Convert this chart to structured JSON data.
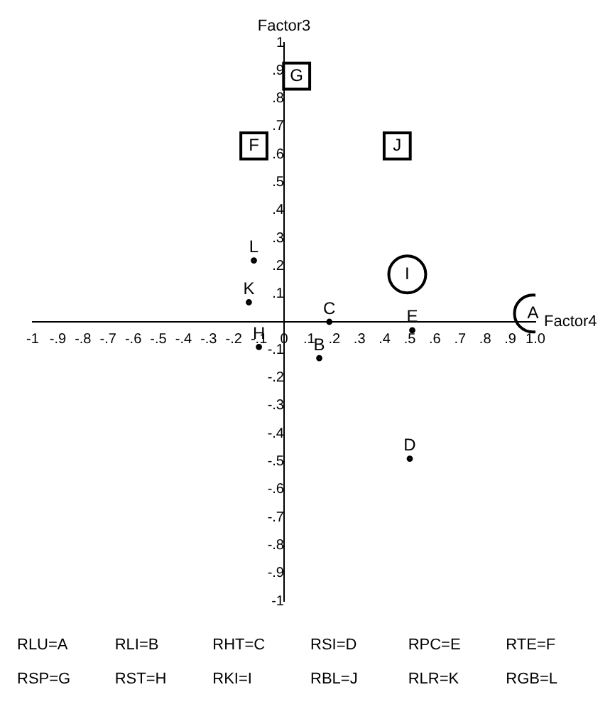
{
  "chart_data": {
    "type": "scatter",
    "xlabel": "Factor4",
    "ylabel": "Factor3",
    "xlim": [
      -1,
      1
    ],
    "ylim": [
      -1,
      1
    ],
    "grid": false,
    "legend": false,
    "xticks": [
      -1,
      {
        "value": -0.9,
        "label": "-.9"
      },
      {
        "value": -0.8,
        "label": "-.8"
      },
      {
        "value": -0.7,
        "label": "-.7"
      },
      {
        "value": -0.6,
        "label": "-.6"
      },
      {
        "value": -0.5,
        "label": "-.5"
      },
      {
        "value": -0.4,
        "label": "-.4"
      },
      {
        "value": -0.3,
        "label": "-.3"
      },
      {
        "value": -0.2,
        "label": "-.2"
      },
      {
        "value": -0.1,
        "label": "-.1"
      },
      0,
      {
        "value": 0.1,
        "label": ".1"
      },
      {
        "value": 0.2,
        "label": ".2"
      },
      {
        "value": 0.3,
        "label": ".3"
      },
      {
        "value": 0.4,
        "label": ".4"
      },
      {
        "value": 0.5,
        "label": ".5"
      },
      {
        "value": 0.6,
        "label": ".6"
      },
      {
        "value": 0.7,
        "label": ".7"
      },
      {
        "value": 0.8,
        "label": ".8"
      },
      {
        "value": 0.9,
        "label": ".9"
      },
      {
        "value": 1,
        "label": "1.0"
      }
    ],
    "yticks": [
      -1,
      {
        "value": -0.9,
        "label": "-.9"
      },
      {
        "value": -0.8,
        "label": "-.8"
      },
      {
        "value": -0.7,
        "label": "-.7"
      },
      {
        "value": -0.6,
        "label": "-.6"
      },
      {
        "value": -0.5,
        "label": "-.5"
      },
      {
        "value": -0.4,
        "label": "-.4"
      },
      {
        "value": -0.3,
        "label": "-.3"
      },
      {
        "value": -0.2,
        "label": "-.2"
      },
      {
        "value": -0.1,
        "label": "-.1"
      },
      {
        "value": 0.1,
        "label": ".1"
      },
      {
        "value": 0.2,
        "label": ".2"
      },
      {
        "value": 0.3,
        "label": ".3"
      },
      {
        "value": 0.4,
        "label": ".4"
      },
      {
        "value": 0.5,
        "label": ".5"
      },
      {
        "value": 0.6,
        "label": ".6"
      },
      {
        "value": 0.7,
        "label": ".7"
      },
      {
        "value": 0.8,
        "label": ".8"
      },
      {
        "value": 0.9,
        "label": ".9"
      },
      1
    ],
    "series": [
      {
        "marker": "square",
        "color": "#000000",
        "x": [
          0.05,
          -0.12,
          0.45
        ],
        "values": [
          0.88,
          0.63,
          0.63
        ],
        "value_labels": [
          "G",
          "F",
          "J"
        ]
      },
      {
        "marker": "circle",
        "color": "#000000",
        "x": [
          0.49,
          0.99
        ],
        "values": [
          0.17,
          0.03
        ],
        "value_labels": [
          "I",
          "A"
        ]
      },
      {
        "color": "#000000",
        "x": [
          -0.12,
          -0.14,
          -0.1,
          0.14,
          0.18,
          0.51,
          0.5
        ],
        "values": [
          0.22,
          0.07,
          -0.09,
          -0.13,
          0,
          -0.03,
          -0.49
        ],
        "value_labels": [
          "L",
          "K",
          "H",
          "B",
          "C",
          "E",
          "D"
        ]
      }
    ],
    "annotations": [
      "RLU=A",
      "RLI=B",
      "RHT=C",
      "RSI=D",
      "RPC=E",
      "RTE=F",
      "RSP=G",
      "RST=H",
      "RKI=I",
      "RBL=J",
      "RLR=K",
      "RGB=L"
    ]
  }
}
